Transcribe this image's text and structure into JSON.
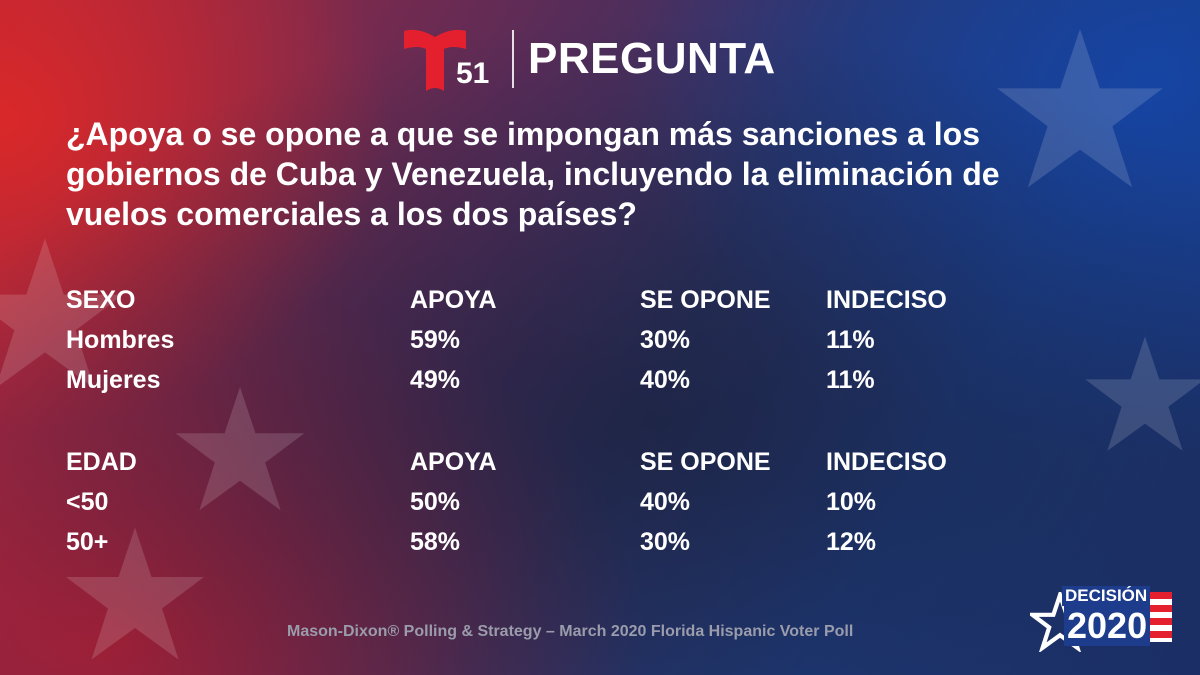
{
  "header": {
    "logo_text": "51",
    "title": "PREGUNTA"
  },
  "question": "¿Apoya o se opone a que se impongan más sanciones a los gobiernos de Cuba y Venezuela, incluyendo la eliminación de vuelos comerciales a los dos países?",
  "tables": [
    {
      "headers": [
        "SEXO",
        "APOYA",
        "SE OPONE",
        "INDECISO"
      ],
      "rows": [
        [
          "Hombres",
          "59%",
          "30%",
          "11%"
        ],
        [
          "Mujeres",
          "49%",
          "40%",
          "11%"
        ]
      ]
    },
    {
      "headers": [
        "EDAD",
        "APOYA",
        "SE OPONE",
        "INDECISO"
      ],
      "rows": [
        [
          "<50",
          "50%",
          "40%",
          "10%"
        ],
        [
          "50+",
          "58%",
          "30%",
          "12%"
        ]
      ]
    }
  ],
  "source": "Mason-Dixon® Polling & Strategy – March 2020 Florida Hispanic Voter Poll",
  "badge": {
    "word": "DECISIÓN",
    "year": "2020"
  },
  "colors": {
    "brand_red": "#e4202e",
    "text": "#ffffff",
    "source_text": "#9a9cab",
    "badge_blue": "#1d3c8c"
  },
  "icons": [
    "telemundo-t-logo-icon",
    "star-icon"
  ]
}
